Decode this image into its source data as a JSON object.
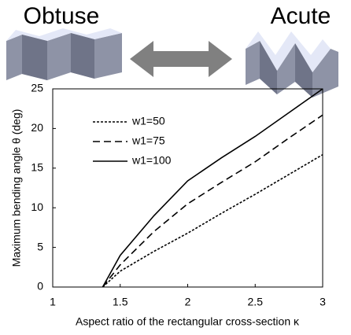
{
  "header": {
    "left": "Obtuse",
    "right": "Acute"
  },
  "chart_data": {
    "type": "line",
    "xlabel": "Aspect ratio of the rectangular cross-section κ",
    "ylabel": "Maximum bending angle θ (deg)",
    "x": [
      1.37,
      1.5,
      1.75,
      2,
      2.25,
      2.5,
      2.75,
      3
    ],
    "series": [
      {
        "name": "w1=50",
        "color": "#000000",
        "dash": "dotted",
        "values": [
          0,
          2,
          4.5,
          6.8,
          9.3,
          11.7,
          14.2,
          16.7
        ]
      },
      {
        "name": "w1=75",
        "color": "#000000",
        "dash": "dashed",
        "values": [
          0,
          2.8,
          7,
          10.5,
          13.2,
          15.8,
          18.8,
          21.7
        ]
      },
      {
        "name": "w1=100",
        "color": "#000000",
        "dash": "solid",
        "values": [
          0,
          4,
          9,
          13.4,
          16.3,
          19,
          22,
          25
        ]
      }
    ],
    "xlim": [
      1,
      3
    ],
    "ylim": [
      0,
      25
    ],
    "xticks": [
      1,
      1.5,
      2,
      2.5,
      3
    ],
    "yticks": [
      0,
      5,
      10,
      15,
      20,
      25
    ],
    "legend": "upper left",
    "grid": false
  }
}
